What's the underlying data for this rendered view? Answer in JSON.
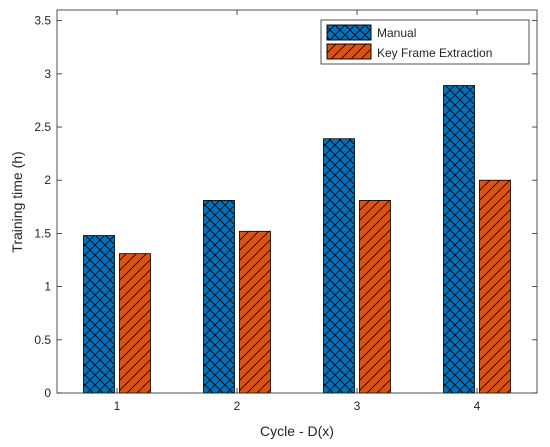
{
  "chart_data": {
    "type": "bar",
    "title": "",
    "xlabel": "Cycle - D(x)",
    "ylabel": "Training time (h)",
    "categories": [
      "1",
      "2",
      "3",
      "4"
    ],
    "ylim": [
      0,
      3.6
    ],
    "yticks": [
      0,
      0.5,
      1,
      1.5,
      2,
      2.5,
      3,
      3.5
    ],
    "ytick_labels": [
      "0",
      "0.5",
      "1",
      "1.5",
      "2",
      "2.5",
      "3",
      "3.5"
    ],
    "grid": false,
    "legend_position": "top-right",
    "series": [
      {
        "name": "Manual",
        "values": [
          1.48,
          1.81,
          2.39,
          2.89
        ],
        "color": "#0072BD",
        "hatch": "crosshatch"
      },
      {
        "name": "Key Frame Extraction",
        "values": [
          1.31,
          1.52,
          1.81,
          2.0
        ],
        "color": "#D95319",
        "hatch": "diagonal"
      }
    ]
  }
}
